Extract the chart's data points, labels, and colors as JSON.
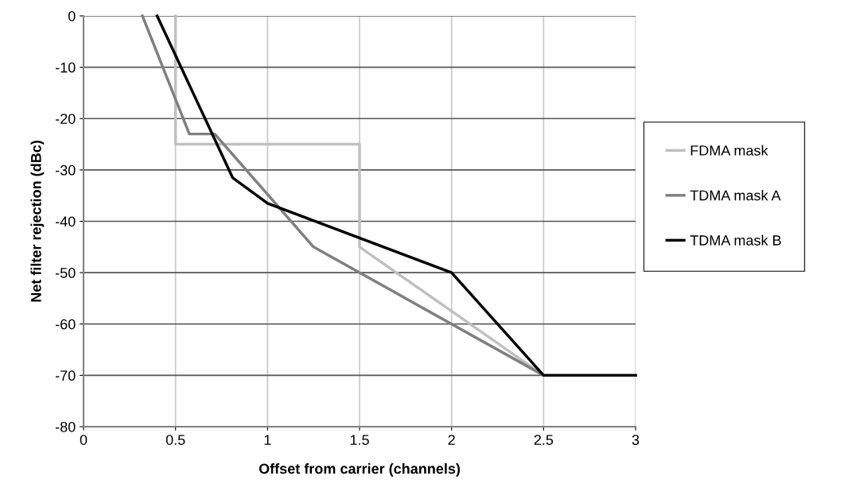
{
  "chart_data": {
    "type": "line",
    "xlabel": "Offset from carrier (channels)",
    "ylabel": "Net filter rejection (dBc)",
    "xlim": [
      0,
      3
    ],
    "xticks": [
      0,
      0.5,
      1,
      1.5,
      2,
      2.5,
      3
    ],
    "ylim": [
      -80,
      0
    ],
    "yticks": [
      -80,
      -70,
      -60,
      -50,
      -40,
      -30,
      -20,
      -10,
      0
    ],
    "grid": true,
    "legend": "right",
    "marker": "none",
    "line_style": "solid",
    "series": [
      {
        "name": "FDMA mask",
        "color": "#c0c0c0",
        "x": [
          0.5,
          0.5,
          1.5,
          1.5,
          2.5,
          3
        ],
        "values": [
          0,
          -25,
          -25,
          -45,
          -70,
          -70
        ]
      },
      {
        "name": "TDMA mask A",
        "color": "#808080",
        "x": [
          0.32,
          0.575,
          0.713,
          1.25,
          2.5,
          3
        ],
        "values": [
          0,
          -23,
          -23,
          -45,
          -70,
          -70
        ]
      },
      {
        "name": "TDMA mask B",
        "color": "#000000",
        "x": [
          0.4,
          0.81,
          1.0,
          2.0,
          2.5,
          3
        ],
        "values": [
          0,
          -31.5,
          -36.5,
          -50,
          -70,
          -70
        ]
      }
    ]
  }
}
